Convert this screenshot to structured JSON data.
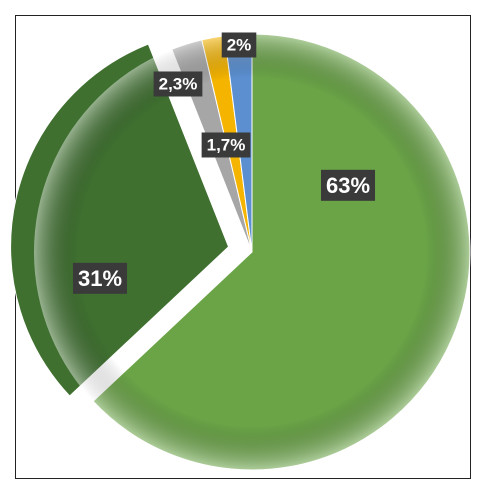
{
  "chart_data": {
    "type": "pie",
    "values": [
      63,
      31,
      2.3,
      1.7,
      2
    ],
    "value_labels": [
      "63%",
      "31%",
      "2,3%",
      "1,7%",
      "2%"
    ],
    "colors": [
      "#6aa447",
      "#3f7030",
      "#a6a6a6",
      "#f5b400",
      "#5b8fd0"
    ]
  }
}
